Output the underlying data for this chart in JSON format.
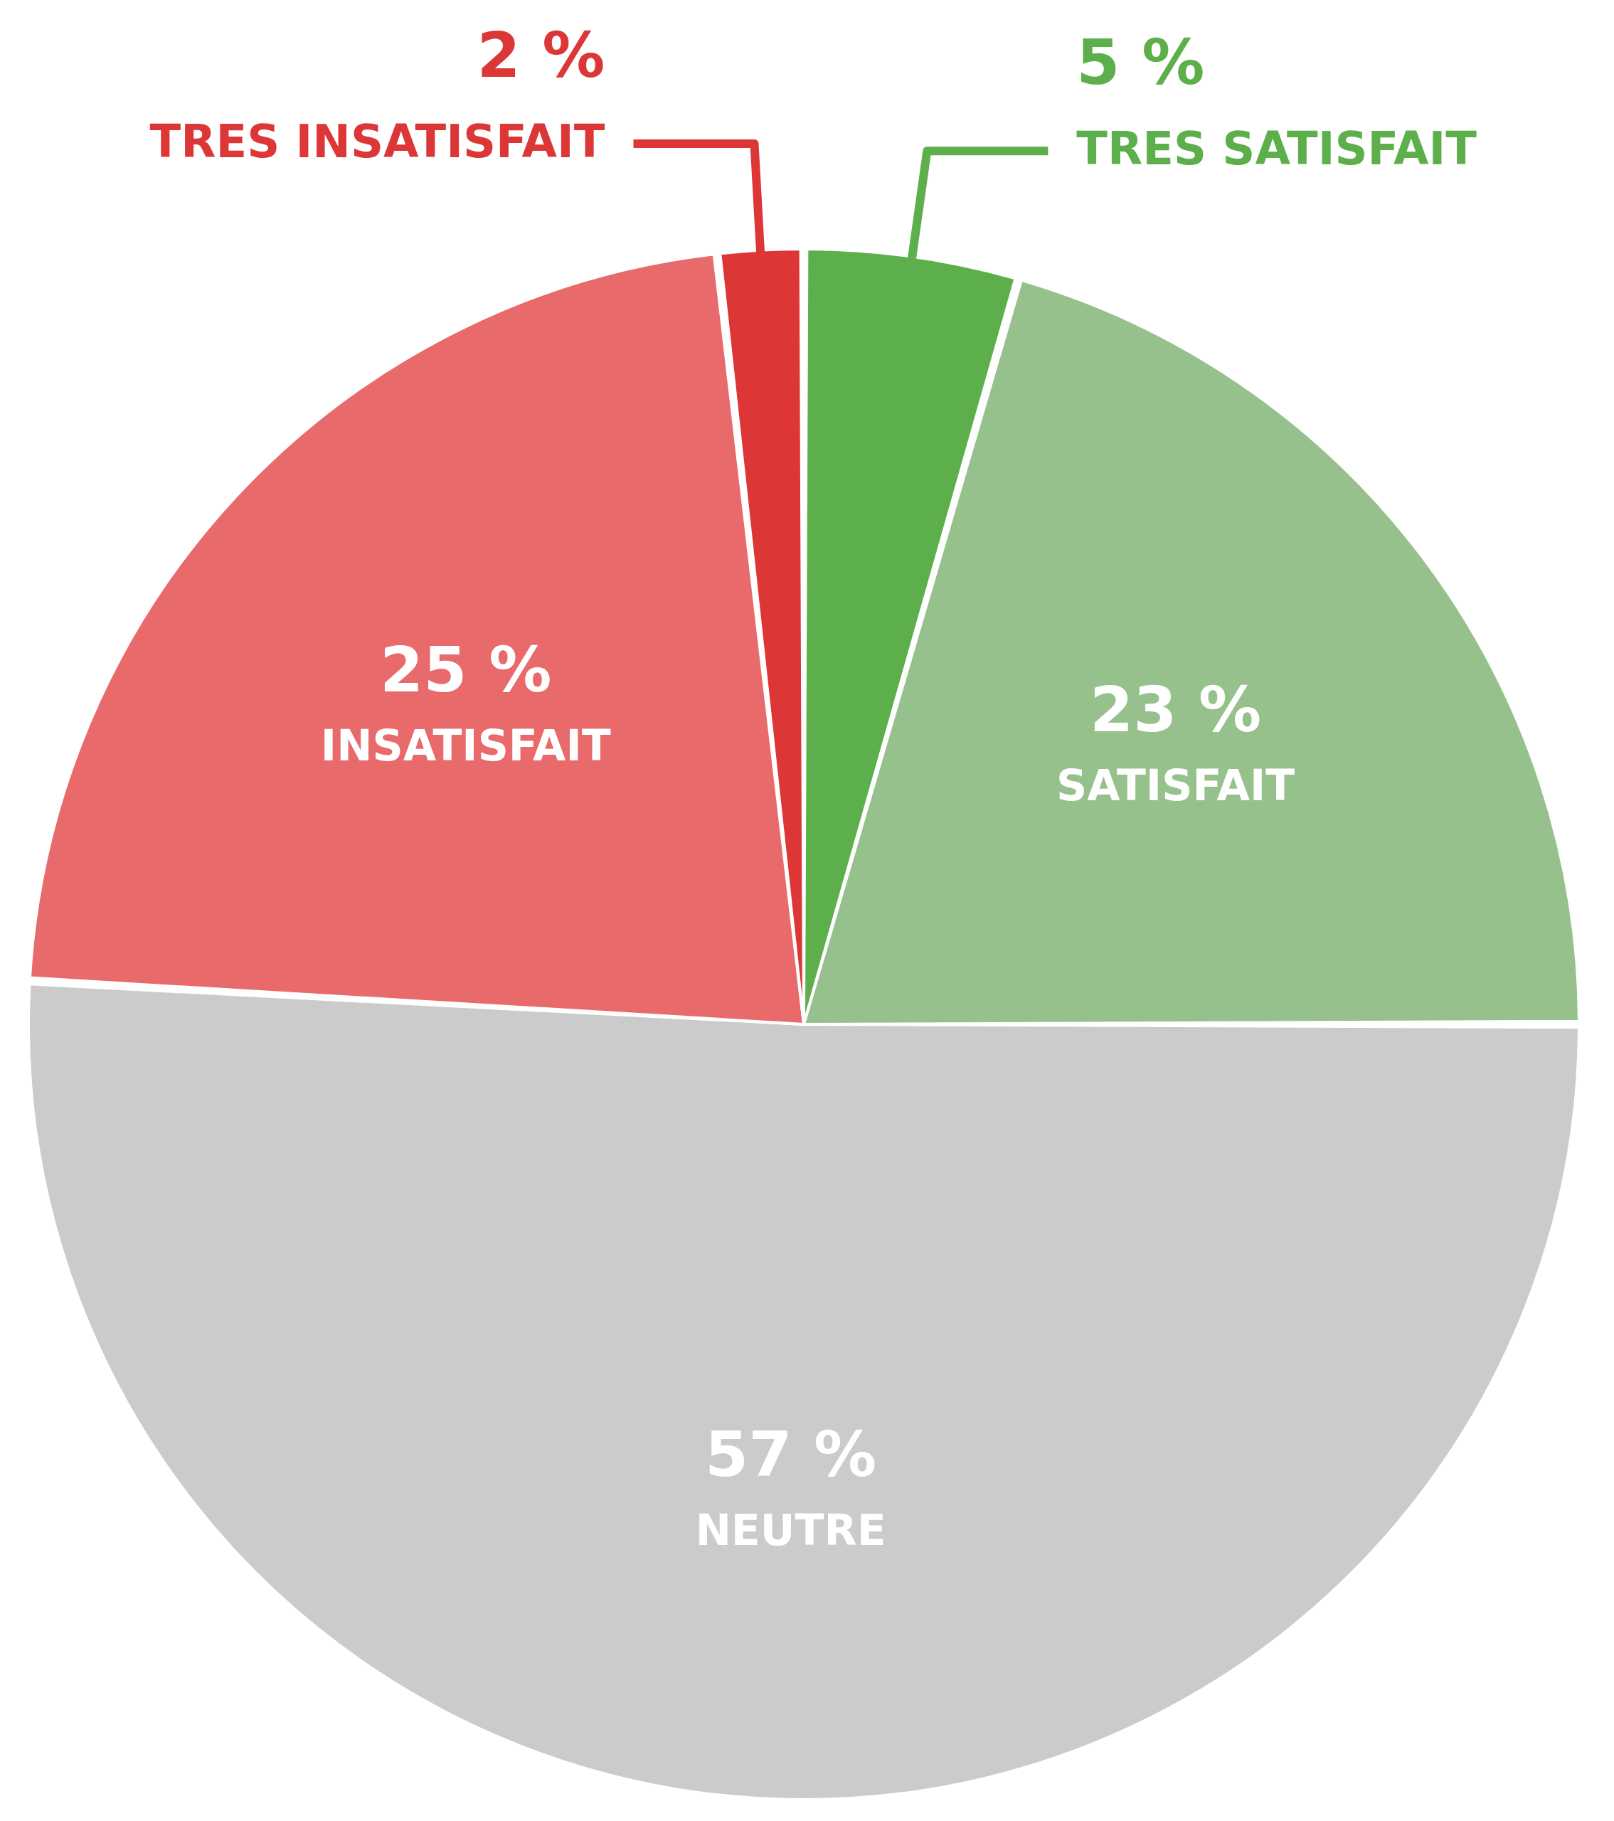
{
  "chart_data": {
    "type": "pie",
    "categories": [
      "TRES SATISFAIT",
      "SATISFAIT",
      "NEUTRE",
      "INSATISFAIT",
      "TRES INSATISFAIT"
    ],
    "values": [
      5,
      23,
      57,
      25,
      2
    ],
    "value_labels": [
      "5 %",
      "23 %",
      "57 %",
      "25 %",
      "2 %"
    ],
    "colors": [
      "#5daf4b",
      "#97c18c",
      "#cbcbcb",
      "#e86a6b",
      "#dd3636"
    ]
  }
}
